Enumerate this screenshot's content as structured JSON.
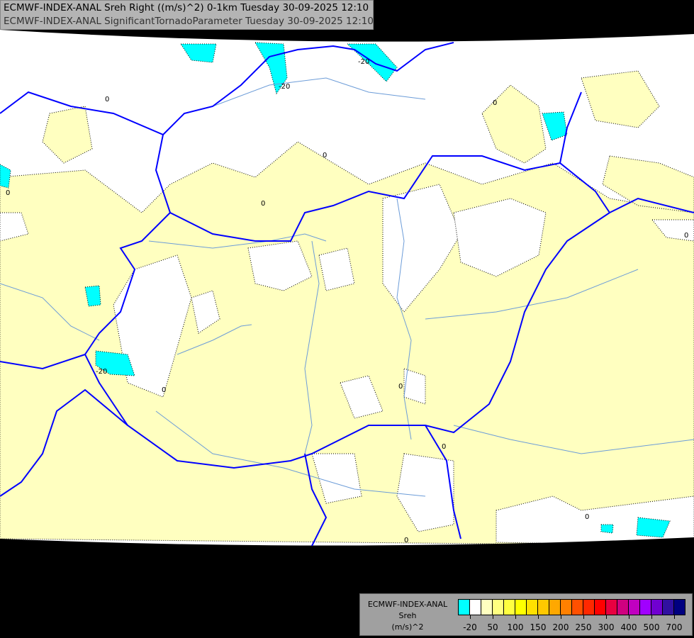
{
  "title": {
    "line1": "ECMWF-INDEX-ANAL Sreh Right ((m/s)^2) 0-1km Tuesday 30-09-2025 12:10",
    "line2": "ECMWF-INDEX-ANAL SignificantTornadoParameter Tuesday 30-09-2025 12:10"
  },
  "legend": {
    "model": "ECMWF-INDEX-ANAL",
    "variable": "Sreh",
    "unit": "(m/s)^2",
    "colors": [
      "#00ffff",
      "#ffffff",
      "#ffffc0",
      "#ffff80",
      "#ffff40",
      "#ffff00",
      "#ffe000",
      "#ffc800",
      "#ffa800",
      "#ff8000",
      "#ff5000",
      "#ff2800",
      "#ff0000",
      "#e80040",
      "#d00080",
      "#c000c0",
      "#a000ff",
      "#7000d0",
      "#3010a0",
      "#000080"
    ],
    "labels": [
      "-20",
      "50",
      "100",
      "150",
      "200",
      "250",
      "300",
      "400",
      "500",
      "700"
    ]
  },
  "map": {
    "contour_labels": [
      "0",
      "-20"
    ],
    "colors": {
      "background_outside": "#000000",
      "border": "#0000ff",
      "river": "#6c9cd8",
      "low_field": "#ffffc0",
      "negative_field": "#00ffff"
    }
  }
}
